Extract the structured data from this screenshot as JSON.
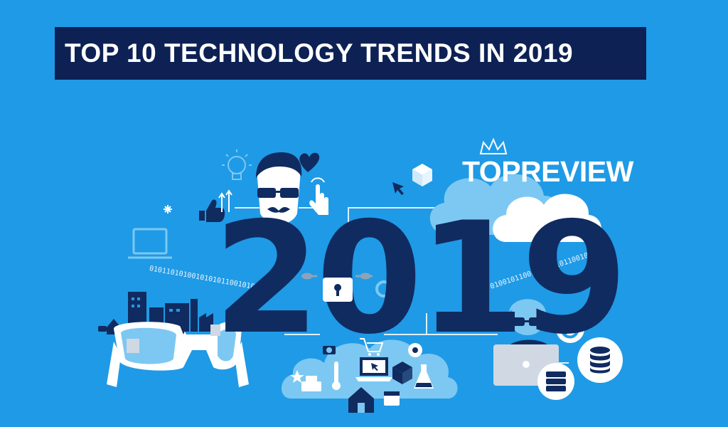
{
  "banner": {
    "title": "TOP 10 TECHNOLOGY TRENDS IN 2019"
  },
  "brand": {
    "name": "TOPREVIEW"
  },
  "hero": {
    "year": "2019",
    "binary_left": "0101101010010101011001010",
    "binary_right": "01001011001010101011001010"
  },
  "colors": {
    "background": "#1f9ae6",
    "banner": "#0d2155",
    "year": "#102b60",
    "light_accent": "#7cc8f2",
    "cloud": "#ffffff"
  },
  "icons": [
    "lightbulb-icon",
    "heart-icon",
    "thumbs-up-icon",
    "hipster-avatar-icon",
    "touch-hand-icon",
    "cube-icon",
    "cursor-icon",
    "laptop-icon",
    "city-skyline-icon",
    "smart-glasses-icon",
    "padlock-icon",
    "magnifier-icon",
    "cloud-icon",
    "sync-icon",
    "database-icon",
    "server-icon",
    "developer-avatar-icon",
    "shopping-cart-icon",
    "webcam-icon",
    "flask-icon",
    "thermometer-icon",
    "printer-icon",
    "calendar-icon",
    "home-icon",
    "camera-icon",
    "star-icon",
    "crown-icon"
  ]
}
